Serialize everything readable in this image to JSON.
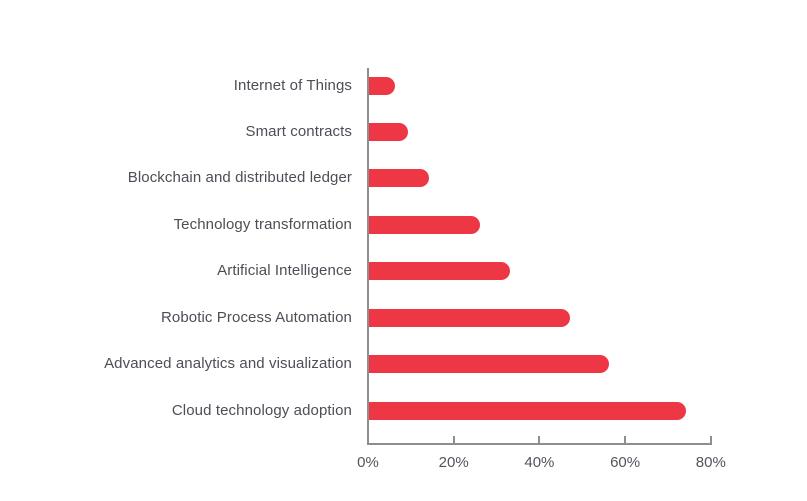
{
  "chart_data": {
    "type": "bar",
    "orientation": "horizontal",
    "title": "",
    "xlabel": "",
    "ylabel": "",
    "categories": [
      "Internet of Things",
      "Smart contracts",
      "Blockchain and distributed ledger",
      "Technology transformation",
      "Artificial Intelligence",
      "Robotic Process Automation",
      "Advanced analytics and visualization",
      "Cloud technology adoption"
    ],
    "values": [
      6,
      9,
      14,
      26,
      33,
      47,
      56,
      74
    ],
    "unit": "%",
    "xlim": [
      0,
      80
    ],
    "x_tick_labels": [
      "0%",
      "20%",
      "40%",
      "60%",
      "80%"
    ],
    "x_tick_values": [
      0,
      20,
      40,
      60,
      80
    ],
    "grid": false,
    "legend": false,
    "colors": {
      "bar": "#ED3745",
      "axis": "#8E8E91",
      "category_label": "#4D4E56",
      "tick_label": "#53545C",
      "background": "#FFFFFF"
    }
  }
}
